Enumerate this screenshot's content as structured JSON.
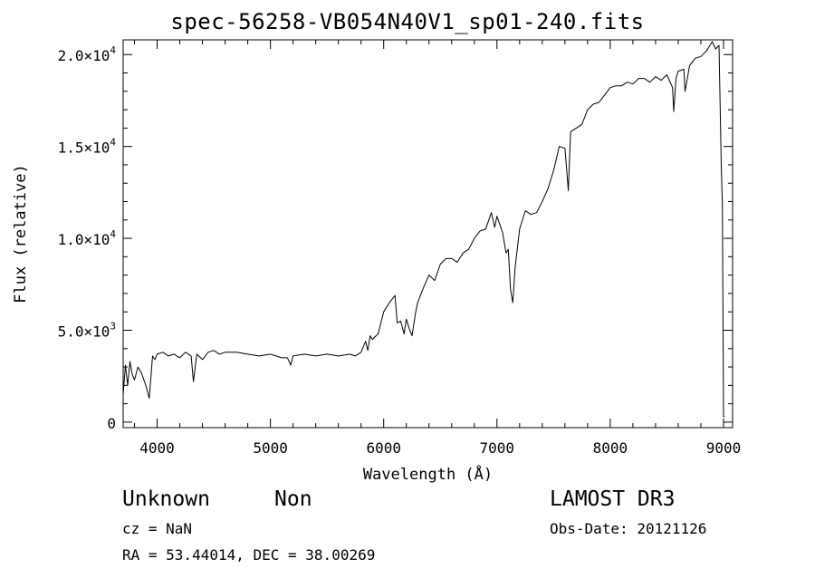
{
  "chart_data": {
    "type": "line",
    "title": "spec-56258-VB054N40V1_sp01-240.fits",
    "xlabel": "Wavelength (Å)",
    "ylabel": "Flux (relative)",
    "xlim": [
      3700,
      9080
    ],
    "ylim": [
      -300,
      20800
    ],
    "x_ticks": [
      {
        "value": 4000,
        "label": "4000"
      },
      {
        "value": 5000,
        "label": "5000"
      },
      {
        "value": 6000,
        "label": "6000"
      },
      {
        "value": 7000,
        "label": "7000"
      },
      {
        "value": 8000,
        "label": "8000"
      },
      {
        "value": 9000,
        "label": "9000"
      }
    ],
    "y_ticks": [
      {
        "value": 0,
        "mantissa": "0",
        "exponent": ""
      },
      {
        "value": 5000,
        "mantissa": "5.0×10",
        "exponent": "3"
      },
      {
        "value": 10000,
        "mantissa": "1.0×10",
        "exponent": "4"
      },
      {
        "value": 15000,
        "mantissa": "1.5×10",
        "exponent": "4"
      },
      {
        "value": 20000,
        "mantissa": "2.0×10",
        "exponent": "4"
      }
    ],
    "grid": false,
    "series": [
      {
        "x": [
          3700,
          3720,
          3740,
          3760,
          3780,
          3800,
          3830,
          3860,
          3900,
          3930,
          3960,
          3980,
          4000,
          4050,
          4100,
          4150,
          4200,
          4250,
          4300,
          4320,
          4350,
          4400,
          4450,
          4500,
          4550,
          4600,
          4700,
          4800,
          4900,
          5000,
          5100,
          5150,
          5180,
          5200,
          5300,
          5400,
          5500,
          5600,
          5700,
          5750,
          5800,
          5840,
          5860,
          5880,
          5900,
          5950,
          6000,
          6050,
          6100,
          6120,
          6150,
          6180,
          6200,
          6230,
          6250,
          6280,
          6300,
          6350,
          6400,
          6450,
          6500,
          6550,
          6600,
          6650,
          6700,
          6750,
          6800,
          6850,
          6900,
          6950,
          6980,
          7000,
          7050,
          7080,
          7100,
          7120,
          7140,
          7160,
          7200,
          7250,
          7300,
          7350,
          7400,
          7450,
          7500,
          7550,
          7600,
          7630,
          7650,
          7700,
          7750,
          7800,
          7850,
          7900,
          7950,
          8000,
          8050,
          8100,
          8150,
          8200,
          8250,
          8300,
          8350,
          8400,
          8450,
          8500,
          8550,
          8560,
          8580,
          8600,
          8650,
          8660,
          8700,
          8750,
          8800,
          8850,
          8900,
          8930,
          8960,
          8980,
          8990,
          9000,
          9010
        ],
        "y": [
          1500,
          3100,
          2000,
          3300,
          2600,
          2300,
          3000,
          2700,
          2000,
          1300,
          3600,
          3400,
          3700,
          3800,
          3600,
          3700,
          3500,
          3800,
          3600,
          2200,
          3700,
          3400,
          3800,
          3900,
          3700,
          3800,
          3800,
          3700,
          3600,
          3700,
          3500,
          3500,
          3100,
          3600,
          3700,
          3600,
          3700,
          3600,
          3700,
          3600,
          3800,
          4400,
          3900,
          4700,
          4500,
          4800,
          6000,
          6500,
          6900,
          5400,
          5500,
          4800,
          5600,
          5000,
          4700,
          5900,
          6500,
          7300,
          8000,
          7700,
          8600,
          8900,
          8900,
          8700,
          9200,
          9400,
          10000,
          10400,
          10500,
          11400,
          10600,
          11200,
          10300,
          9200,
          9400,
          7200,
          6500,
          8400,
          10500,
          11500,
          11300,
          11400,
          12000,
          12700,
          13700,
          15000,
          14900,
          12600,
          15800,
          16000,
          16200,
          17000,
          17300,
          17400,
          17800,
          18200,
          18300,
          18300,
          18500,
          18400,
          18700,
          18700,
          18500,
          18800,
          18600,
          18900,
          18200,
          16900,
          18700,
          19100,
          19200,
          18000,
          19400,
          19800,
          19900,
          20200,
          20700,
          20300,
          20500,
          13900,
          11900,
          300,
          300
        ]
      }
    ],
    "footer": {
      "class_label": "Unknown",
      "subclass_label": "Non",
      "survey": "LAMOST DR3",
      "cz": "cz = NaN",
      "obs_date": "Obs-Date: 20121126",
      "coords": "RA =  53.44014, DEC =  38.00269"
    }
  }
}
